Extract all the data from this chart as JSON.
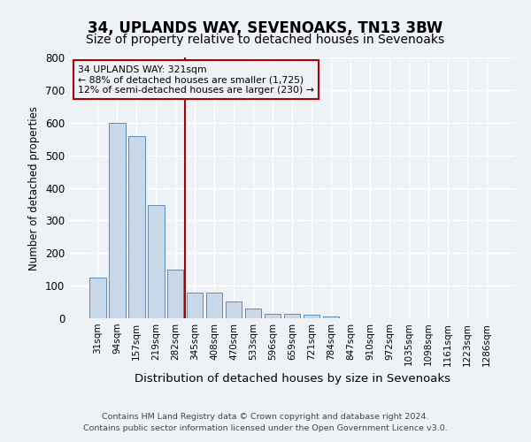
{
  "title": "34, UPLANDS WAY, SEVENOAKS, TN13 3BW",
  "subtitle": "Size of property relative to detached houses in Sevenoaks",
  "xlabel": "Distribution of detached houses by size in Sevenoaks",
  "ylabel": "Number of detached properties",
  "categories": [
    "31sqm",
    "94sqm",
    "157sqm",
    "219sqm",
    "282sqm",
    "345sqm",
    "408sqm",
    "470sqm",
    "533sqm",
    "596sqm",
    "659sqm",
    "721sqm",
    "784sqm",
    "847sqm",
    "910sqm",
    "972sqm",
    "1035sqm",
    "1098sqm",
    "1161sqm",
    "1223sqm",
    "1286sqm"
  ],
  "values": [
    125,
    600,
    558,
    347,
    150,
    78,
    78,
    52,
    30,
    14,
    13,
    10,
    5,
    0,
    0,
    0,
    0,
    0,
    0,
    0,
    0
  ],
  "bar_color": "#c8d8e8",
  "bar_edge_color": "#5b8db8",
  "vline_color": "#aa0000",
  "annotation_text": "34 UPLANDS WAY: 321sqm\n← 88% of detached houses are smaller (1,725)\n12% of semi-detached houses are larger (230) →",
  "annotation_box_color": "#aa0000",
  "ylim": [
    0,
    800
  ],
  "yticks": [
    0,
    100,
    200,
    300,
    400,
    500,
    600,
    700,
    800
  ],
  "footer1": "Contains HM Land Registry data © Crown copyright and database right 2024.",
  "footer2": "Contains public sector information licensed under the Open Government Licence v3.0.",
  "background_color": "#eef2f7",
  "grid_color": "#ffffff",
  "title_fontsize": 12,
  "subtitle_fontsize": 10,
  "bar_width": 0.85
}
